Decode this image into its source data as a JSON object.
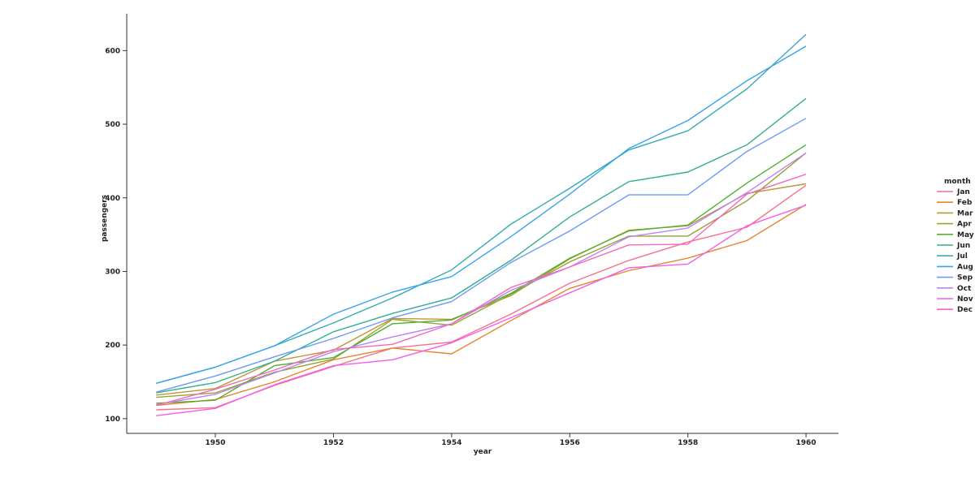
{
  "chart_data": {
    "type": "line",
    "title": "",
    "xlabel": "year",
    "ylabel": "passengers",
    "x": [
      1949,
      1950,
      1951,
      1952,
      1953,
      1954,
      1955,
      1956,
      1957,
      1958,
      1959,
      1960
    ],
    "xlim": [
      1948.5,
      1960.55
    ],
    "ylim": [
      80,
      650
    ],
    "xticks": [
      1950,
      1952,
      1954,
      1956,
      1958,
      1960
    ],
    "yticks": [
      100,
      200,
      300,
      400,
      500,
      600
    ],
    "grid": false,
    "legend_title": "month",
    "legend_position": "right",
    "series": [
      {
        "name": "Jan",
        "color": "#f77189",
        "values": [
          112,
          115,
          145,
          171,
          196,
          204,
          242,
          284,
          315,
          340,
          360,
          417
        ]
      },
      {
        "name": "Feb",
        "color": "#e5862f",
        "values": [
          118,
          126,
          150,
          180,
          196,
          188,
          233,
          277,
          301,
          318,
          342,
          391
        ]
      },
      {
        "name": "Mar",
        "color": "#bb9832",
        "values": [
          132,
          141,
          178,
          193,
          236,
          235,
          267,
          317,
          356,
          362,
          406,
          419
        ]
      },
      {
        "name": "Apr",
        "color": "#97a431",
        "values": [
          129,
          135,
          163,
          181,
          235,
          227,
          269,
          313,
          348,
          348,
          396,
          461
        ]
      },
      {
        "name": "May",
        "color": "#50b131",
        "values": [
          121,
          125,
          172,
          183,
          229,
          234,
          270,
          318,
          355,
          363,
          420,
          472
        ]
      },
      {
        "name": "Jun",
        "color": "#34ae91",
        "values": [
          135,
          149,
          178,
          218,
          243,
          264,
          315,
          374,
          422,
          435,
          472,
          535
        ]
      },
      {
        "name": "Jul",
        "color": "#37abb4",
        "values": [
          148,
          170,
          199,
          230,
          264,
          302,
          364,
          413,
          465,
          491,
          548,
          622
        ]
      },
      {
        "name": "Aug",
        "color": "#3ba3ec",
        "values": [
          148,
          170,
          199,
          242,
          272,
          293,
          347,
          405,
          467,
          505,
          559,
          606
        ]
      },
      {
        "name": "Sep",
        "color": "#6e9af6",
        "values": [
          136,
          158,
          184,
          209,
          237,
          259,
          312,
          355,
          404,
          404,
          463,
          508
        ]
      },
      {
        "name": "Oct",
        "color": "#bb83f4",
        "values": [
          119,
          133,
          162,
          191,
          211,
          229,
          274,
          306,
          347,
          359,
          407,
          461
        ]
      },
      {
        "name": "Nov",
        "color": "#f45deb",
        "values": [
          104,
          114,
          146,
          172,
          180,
          203,
          237,
          271,
          305,
          310,
          362,
          390
        ]
      },
      {
        "name": "Dec",
        "color": "#f667bc",
        "values": [
          118,
          140,
          166,
          194,
          201,
          229,
          278,
          306,
          336,
          337,
          405,
          432
        ]
      }
    ]
  }
}
